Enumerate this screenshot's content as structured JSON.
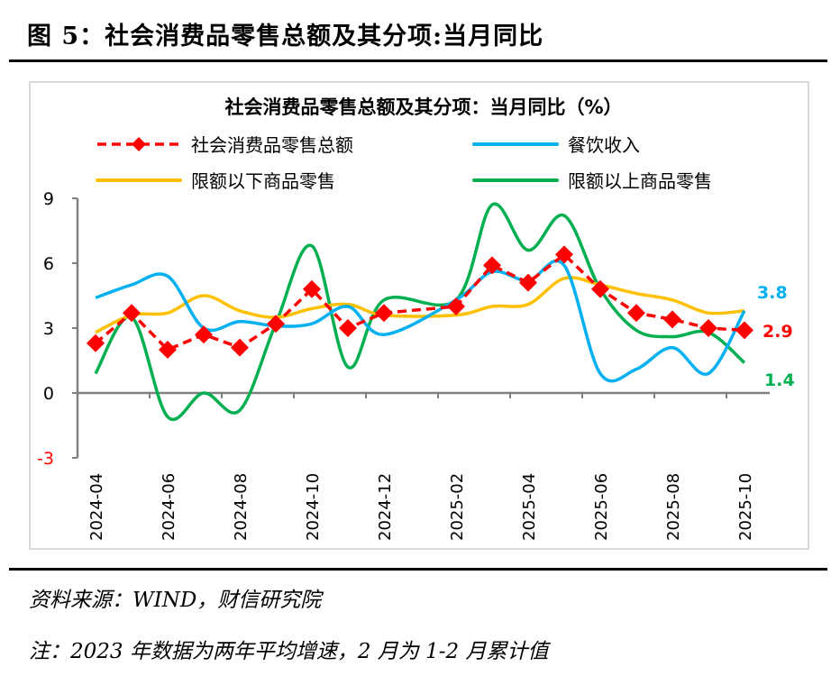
{
  "figure_title": "图 5：社会消费品零售总额及其分项:当月同比",
  "source": "资料来源：WIND，财信研究院",
  "note": "注：2023 年数据为两年平均增速，2 月为 1-2 月累计值",
  "colors": {
    "retail": "#FF0000",
    "catering": "#00B0F0",
    "below_limit": "#FFC000",
    "above_limit": "#00B050"
  },
  "chart_data": {
    "type": "line",
    "title": "社会消费品零售总额及其分项：当月同比（%）",
    "xlabel": "",
    "ylabel": "",
    "ylim": [
      -3,
      9
    ],
    "yticks": [
      "9",
      "6",
      "3",
      "0",
      "-3"
    ],
    "grid": false,
    "legend": "top",
    "categories": [
      "2024-04",
      "2024-05",
      "2024-06",
      "2024-07",
      "2024-08",
      "2024-09",
      "2024-10",
      "2024-11",
      "2024-12",
      "2025-01",
      "2025-02",
      "2025-03",
      "2025-04",
      "2025-05",
      "2025-06",
      "2025-07",
      "2025-08",
      "2025-09",
      "2025-10"
    ],
    "xtick_labels": [
      "2024-04",
      "2024-06",
      "2024-08",
      "2024-10",
      "2024-12",
      "2025-02",
      "2025-04",
      "2025-06",
      "2025-08",
      "2025-10"
    ],
    "series": [
      {
        "name": "社会消费品零售总额",
        "style": "dashed-diamond",
        "values": [
          2.3,
          3.7,
          2.0,
          2.7,
          2.1,
          3.2,
          4.8,
          3.0,
          3.7,
          null,
          4.0,
          5.9,
          5.1,
          6.4,
          4.8,
          3.7,
          3.4,
          3.0,
          2.9
        ],
        "end_label": "2.9"
      },
      {
        "name": "餐饮收入",
        "style": "smooth",
        "values": [
          4.4,
          5.0,
          5.4,
          3.0,
          3.3,
          3.1,
          3.2,
          4.0,
          2.7,
          null,
          4.3,
          5.6,
          5.2,
          5.9,
          0.9,
          1.1,
          2.1,
          0.9,
          3.8
        ],
        "end_label": "3.8"
      },
      {
        "name": "限额以下商品零售",
        "style": "smooth",
        "values": [
          2.8,
          3.6,
          3.7,
          4.5,
          3.8,
          3.5,
          3.9,
          4.1,
          3.6,
          null,
          3.6,
          4.0,
          4.1,
          5.3,
          5.0,
          4.6,
          4.3,
          3.7,
          3.8
        ],
        "end_label": ""
      },
      {
        "name": "限额以上商品零售",
        "style": "smooth",
        "values": [
          0.9,
          3.5,
          -1.1,
          0.0,
          -0.8,
          3.2,
          6.8,
          1.2,
          4.3,
          null,
          4.3,
          8.7,
          6.6,
          8.2,
          4.8,
          2.9,
          2.6,
          2.8,
          1.4
        ],
        "end_label": "1.4"
      }
    ]
  }
}
